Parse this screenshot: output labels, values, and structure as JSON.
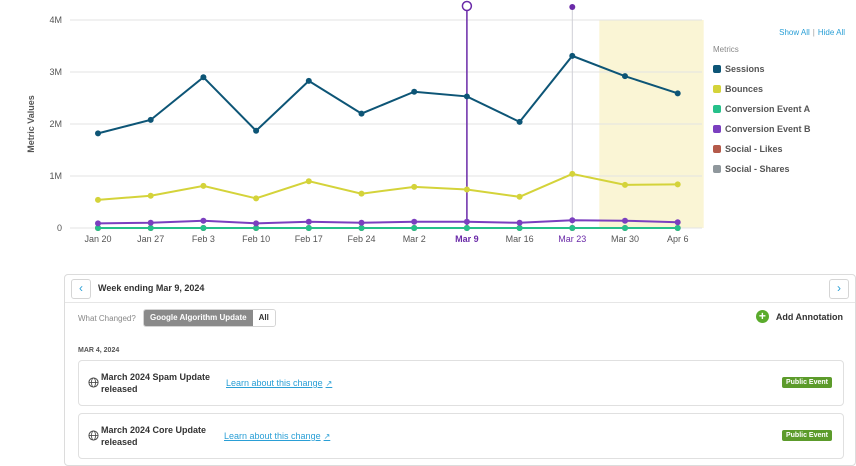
{
  "chart_data": {
    "type": "line",
    "ylabel": "Metric Values",
    "y_ticks": [
      "0",
      "1M",
      "2M",
      "3M",
      "4M"
    ],
    "ylim": [
      0,
      4000000
    ],
    "categories": [
      "Jan 20",
      "Jan 27",
      "Feb 3",
      "Feb 10",
      "Feb 17",
      "Feb 24",
      "Mar 2",
      "Mar 9",
      "Mar 16",
      "Mar 23",
      "Mar 30",
      "Apr 6"
    ],
    "highlighted_categories": [
      "Mar 9",
      "Mar 23"
    ],
    "shaded_range": [
      "Mar 23",
      "Apr 6"
    ],
    "series": [
      {
        "name": "Sessions",
        "color": "#0d5576",
        "values": [
          1820000,
          2080000,
          2900000,
          1870000,
          2830000,
          2200000,
          2620000,
          2530000,
          2040000,
          3310000,
          2920000,
          2590000
        ]
      },
      {
        "name": "Bounces",
        "color": "#d4d33a",
        "values": [
          540000,
          620000,
          810000,
          570000,
          900000,
          660000,
          790000,
          740000,
          600000,
          1040000,
          830000,
          840000
        ]
      },
      {
        "name": "Conversion Event A",
        "color": "#26c08a",
        "values": [
          0,
          0,
          0,
          0,
          0,
          0,
          0,
          0,
          0,
          0,
          0,
          0
        ]
      },
      {
        "name": "Conversion Event B",
        "color": "#7b3fbf",
        "values": [
          90000,
          100000,
          140000,
          90000,
          120000,
          100000,
          120000,
          120000,
          100000,
          150000,
          140000,
          110000
        ]
      },
      {
        "name": "Social - Likes",
        "color": "#b45a4a",
        "values": [
          0,
          0,
          0,
          0,
          0,
          0,
          0,
          0,
          0,
          0,
          0,
          0
        ]
      },
      {
        "name": "Social - Shares",
        "color": "#8f979c",
        "values": [
          0,
          0,
          0,
          0,
          0,
          0,
          0,
          0,
          0,
          0,
          0,
          0
        ]
      }
    ],
    "grid": true
  },
  "legend": {
    "show_all": "Show All",
    "hide_all": "Hide All",
    "separator": "|",
    "heading": "Metrics"
  },
  "panel": {
    "week_title": "Week ending Mar 9, 2024",
    "prev_icon": "chevron-left-icon",
    "next_icon": "chevron-right-icon",
    "what_changed": "What Changed?",
    "filters": [
      {
        "label": "Google Algorithm Update",
        "active": true
      },
      {
        "label": "All",
        "active": false
      }
    ],
    "add_annotation": "Add Annotation",
    "date_label": "MAR 4, 2024",
    "events": [
      {
        "title": "March 2024 Spam Update released",
        "link": "Learn about this change",
        "badge": "Public Event"
      },
      {
        "title": "March 2024 Core Update released",
        "link": "Learn about this change",
        "badge": "Public Event"
      }
    ]
  },
  "colors": {
    "accent": "#2a9fd6",
    "badge": "#5c9b2b",
    "add_icon": "#5aab2c",
    "shade": "#faf5d5",
    "marker": "#6a2aa8"
  }
}
